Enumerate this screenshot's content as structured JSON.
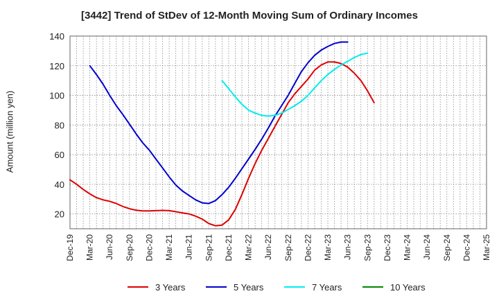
{
  "chart_data": {
    "type": "line",
    "title": "[3442]  Trend of StDev of 12-Month Moving Sum of Ordinary Incomes",
    "xlabel": "",
    "ylabel": "Amount (million yen)",
    "ylim": [
      10,
      140
    ],
    "yticks": [
      20,
      40,
      60,
      80,
      100,
      120,
      140
    ],
    "x_ticks": [
      "Dec-19",
      "Mar-20",
      "Jun-20",
      "Sep-20",
      "Dec-20",
      "Mar-21",
      "Jun-21",
      "Sep-21",
      "Dec-21",
      "Mar-22",
      "Jun-22",
      "Sep-22",
      "Dec-22",
      "Mar-23",
      "Jun-23",
      "Sep-23",
      "Dec-23",
      "Mar-24",
      "Jun-24",
      "Sep-24",
      "Dec-24",
      "Mar-25"
    ],
    "grid": true,
    "legend_position": "bottom",
    "series": [
      {
        "name": "3 Years",
        "color": "#dd0000",
        "start_index": 0,
        "values": [
          43,
          40,
          36.5,
          33.5,
          31,
          29.5,
          28.5,
          27,
          25,
          23.5,
          22.5,
          22,
          22,
          22.2,
          22.4,
          22.2,
          21.5,
          20.7,
          20,
          18.5,
          16.5,
          13.5,
          12,
          12.5,
          16,
          23,
          33,
          44,
          54,
          63,
          71,
          79,
          87,
          95,
          101,
          106,
          111,
          117,
          120.5,
          122.5,
          122.5,
          121.5,
          119,
          115,
          110,
          103,
          95
        ]
      },
      {
        "name": "5 Years",
        "color": "#0000cc",
        "start_index": 3,
        "values": [
          120,
          114,
          107.5,
          100,
          93,
          87,
          80.5,
          74,
          68,
          63,
          57,
          51,
          45,
          39.5,
          35.5,
          32.5,
          29.5,
          27.5,
          27,
          29,
          33,
          38,
          44,
          50.5,
          57,
          63.5,
          70.5,
          78,
          86,
          93,
          100,
          108,
          116,
          122,
          127,
          130.5,
          133,
          135,
          136,
          136
        ]
      },
      {
        "name": "7 Years",
        "color": "#00eeee",
        "start_index": 23,
        "values": [
          110,
          104.5,
          99,
          94,
          90,
          88,
          86.5,
          86,
          86.5,
          88,
          90.5,
          93,
          96,
          100,
          105,
          110,
          114,
          117.5,
          120.5,
          123,
          125.5,
          127.5,
          128.5
        ]
      },
      {
        "name": "10 Years",
        "color": "#008800",
        "start_index": 0,
        "values": []
      }
    ]
  }
}
